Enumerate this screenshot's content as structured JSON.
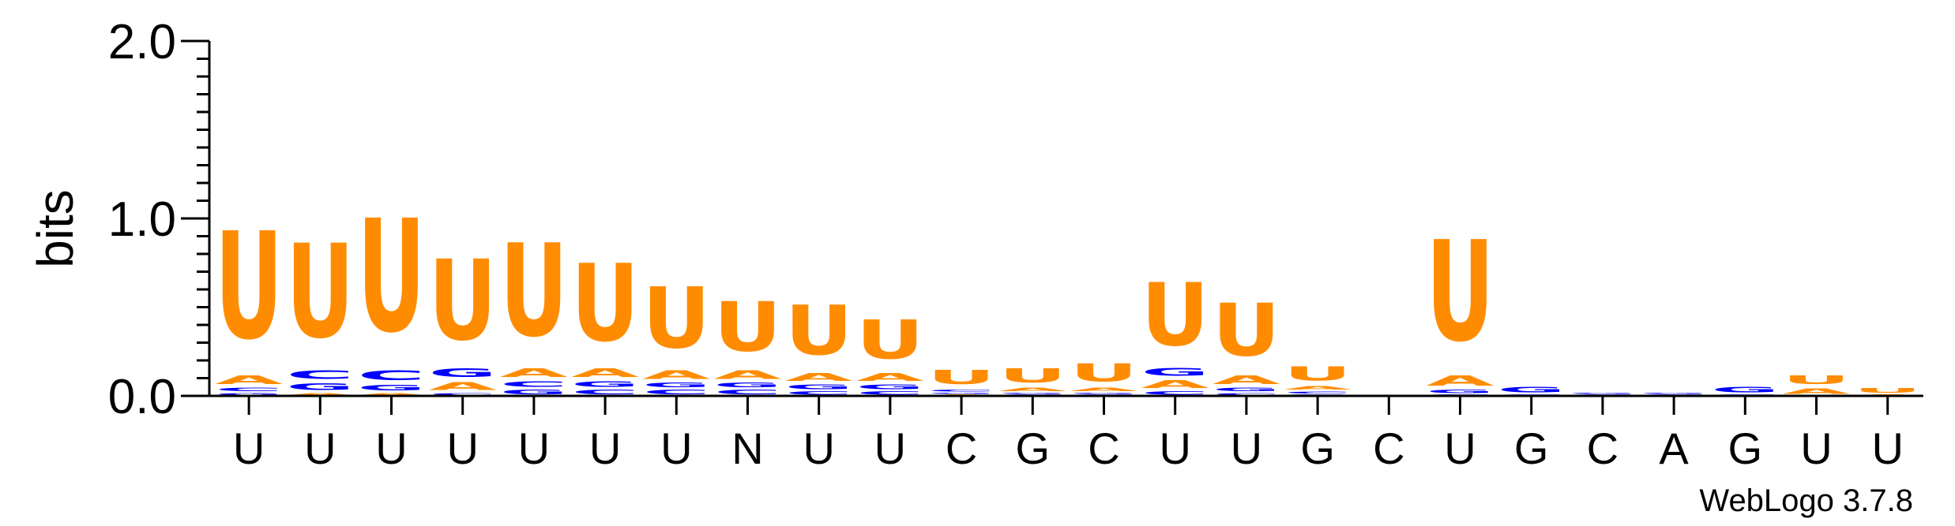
{
  "chart_data": {
    "type": "sequence-logo",
    "ylabel": "bits",
    "ylim": [
      0,
      2.0
    ],
    "yticks": [
      "0.0",
      "1.0",
      "2.0"
    ],
    "credit": "WebLogo 3.7.8",
    "colors": {
      "U": "#ff8c00",
      "A": "#ff8c00",
      "C": "#0000ff",
      "G": "#0000ff"
    },
    "consensus": [
      "U",
      "U",
      "U",
      "U",
      "U",
      "U",
      "U",
      "N",
      "U",
      "U",
      "C",
      "G",
      "C",
      "U",
      "U",
      "G",
      "C",
      "U",
      "G",
      "C",
      "A",
      "G",
      "U",
      "U"
    ],
    "columns": [
      [
        {
          "l": "G",
          "h": 0.02
        },
        {
          "l": "C",
          "h": 0.03
        },
        {
          "l": "A",
          "h": 0.08
        },
        {
          "l": "U",
          "h": 0.97
        }
      ],
      [
        {
          "l": "A",
          "h": 0.02
        },
        {
          "l": "G",
          "h": 0.06
        },
        {
          "l": "C",
          "h": 0.08
        },
        {
          "l": "U",
          "h": 0.85
        }
      ],
      [
        {
          "l": "A",
          "h": 0.02
        },
        {
          "l": "G",
          "h": 0.05
        },
        {
          "l": "C",
          "h": 0.09
        },
        {
          "l": "U",
          "h": 1.02
        }
      ],
      [
        {
          "l": "C",
          "h": 0.02
        },
        {
          "l": "A",
          "h": 0.07
        },
        {
          "l": "G",
          "h": 0.08
        },
        {
          "l": "U",
          "h": 0.73
        }
      ],
      [
        {
          "l": "G",
          "h": 0.04
        },
        {
          "l": "C",
          "h": 0.05
        },
        {
          "l": "A",
          "h": 0.08
        },
        {
          "l": "U",
          "h": 0.84
        }
      ],
      [
        {
          "l": "C",
          "h": 0.04
        },
        {
          "l": "G",
          "h": 0.05
        },
        {
          "l": "A",
          "h": 0.08
        },
        {
          "l": "U",
          "h": 0.7
        }
      ],
      [
        {
          "l": "C",
          "h": 0.04
        },
        {
          "l": "G",
          "h": 0.04
        },
        {
          "l": "A",
          "h": 0.08
        },
        {
          "l": "U",
          "h": 0.55
        }
      ],
      [
        {
          "l": "C",
          "h": 0.04
        },
        {
          "l": "G",
          "h": 0.04
        },
        {
          "l": "A",
          "h": 0.08
        },
        {
          "l": "U",
          "h": 0.45
        }
      ],
      [
        {
          "l": "C",
          "h": 0.03
        },
        {
          "l": "G",
          "h": 0.04
        },
        {
          "l": "A",
          "h": 0.07
        },
        {
          "l": "U",
          "h": 0.45
        }
      ],
      [
        {
          "l": "C",
          "h": 0.03
        },
        {
          "l": "G",
          "h": 0.04
        },
        {
          "l": "A",
          "h": 0.07
        },
        {
          "l": "U",
          "h": 0.35
        }
      ],
      [
        {
          "l": "A",
          "h": 0.01
        },
        {
          "l": "G",
          "h": 0.01
        },
        {
          "l": "C",
          "h": 0.02
        },
        {
          "l": "U",
          "h": 0.13
        }
      ],
      [
        {
          "l": "C",
          "h": 0.01
        },
        {
          "l": "G",
          "h": 0.01
        },
        {
          "l": "A",
          "h": 0.03
        },
        {
          "l": "U",
          "h": 0.13
        }
      ],
      [
        {
          "l": "C",
          "h": 0.01
        },
        {
          "l": "G",
          "h": 0.01
        },
        {
          "l": "A",
          "h": 0.03
        },
        {
          "l": "U",
          "h": 0.16
        }
      ],
      [
        {
          "l": "C",
          "h": 0.03
        },
        {
          "l": "A",
          "h": 0.07
        },
        {
          "l": "G",
          "h": 0.07
        },
        {
          "l": "U",
          "h": 0.57
        }
      ],
      [
        {
          "l": "C",
          "h": 0.02
        },
        {
          "l": "G",
          "h": 0.03
        },
        {
          "l": "A",
          "h": 0.08
        },
        {
          "l": "U",
          "h": 0.48
        }
      ],
      [
        {
          "l": "G",
          "h": 0.01
        },
        {
          "l": "C",
          "h": 0.02
        },
        {
          "l": "A",
          "h": 0.03
        },
        {
          "l": "U",
          "h": 0.13
        }
      ],
      [],
      [
        {
          "l": "C",
          "h": 0.01
        },
        {
          "l": "G",
          "h": 0.03
        },
        {
          "l": "A",
          "h": 0.09
        },
        {
          "l": "U",
          "h": 0.91
        }
      ],
      [
        {
          "l": "C",
          "h": 0.01
        },
        {
          "l": "G",
          "h": 0.05
        }
      ],
      [
        {
          "l": "C",
          "h": 0.01
        },
        {
          "l": "G",
          "h": 0.01
        }
      ],
      [
        {
          "l": "C",
          "h": 0.01
        },
        {
          "l": "G",
          "h": 0.01
        }
      ],
      [
        {
          "l": "C",
          "h": 0.01
        },
        {
          "l": "G",
          "h": 0.05
        }
      ],
      [
        {
          "l": "A",
          "h": 0.05
        },
        {
          "l": "U",
          "h": 0.08
        }
      ],
      [
        {
          "l": "A",
          "h": 0.01
        },
        {
          "l": "U",
          "h": 0.04
        }
      ]
    ]
  }
}
